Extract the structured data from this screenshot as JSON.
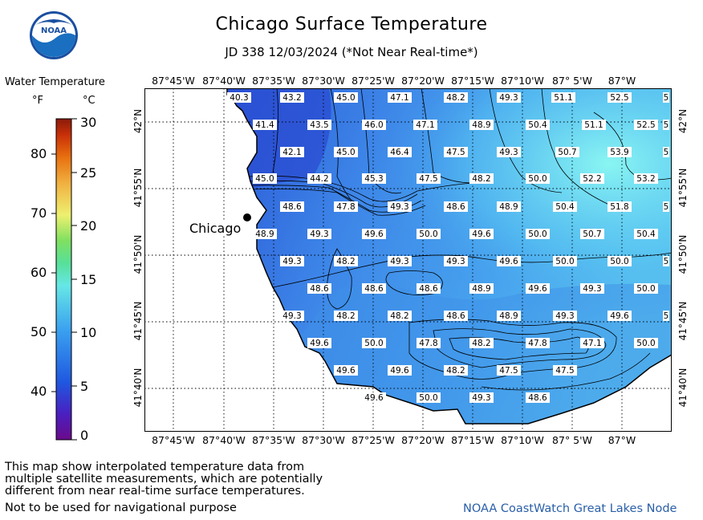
{
  "header": {
    "title": "Chicago Surface Temperature",
    "subtitle": "JD 338 12/03/2024 (*Not Near Real-time*)",
    "logo_text": "NOAA"
  },
  "legend": {
    "title": "Water Temperature",
    "unit_f": "°F",
    "unit_c": "°C",
    "f_ticks": [
      "80",
      "70",
      "60",
      "50",
      "40"
    ],
    "c_ticks": [
      "30",
      "25",
      "20",
      "15",
      "10",
      "5",
      "0"
    ]
  },
  "axes": {
    "lon_labels": [
      "87°45'W",
      "87°40'W",
      "87°35'W",
      "87°30'W",
      "87°25'W",
      "87°20'W",
      "87°15'W",
      "87°10'W",
      "87° 5'W",
      "87°W"
    ],
    "lat_labels": [
      "42°N",
      "41°55'N",
      "41°50'N",
      "41°45'N",
      "41°40'N"
    ]
  },
  "map": {
    "city_label": "Chicago",
    "colors": {
      "cold": "#2a56d6",
      "mid": "#3f93ea",
      "warm": "#7ff2f0",
      "land": "#ffffff"
    },
    "temperature_labels": [
      [
        "40.3",
        "43.2",
        "45.0",
        "47.1",
        "48.2",
        "49.3",
        "51.1",
        "52.5",
        "5"
      ],
      [
        "41.4",
        "43.5",
        "46.0",
        "47.1",
        "48.9",
        "50.4",
        "51.1",
        "52.5",
        "5"
      ],
      [
        "42.1",
        "45.0",
        "46.4",
        "47.5",
        "49.3",
        "50.7",
        "53.9",
        "5"
      ],
      [
        "45.0",
        "44.2",
        "45.3",
        "47.5",
        "48.2",
        "50.0",
        "52.2",
        "53.2"
      ],
      [
        "48.6",
        "47.8",
        "49.3",
        "48.6",
        "48.9",
        "50.4",
        "51.8",
        "5"
      ],
      [
        "48.9",
        "49.3",
        "49.6",
        "50.0",
        "49.6",
        "50.0",
        "50.7",
        "50.4"
      ],
      [
        "49.3",
        "48.2",
        "49.3",
        "49.3",
        "49.6",
        "50.0",
        "50.0",
        "5"
      ],
      [
        "48.6",
        "48.6",
        "48.6",
        "48.9",
        "49.6",
        "49.3",
        "50.0"
      ],
      [
        "49.3",
        "48.2",
        "48.2",
        "48.6",
        "48.9",
        "49.3",
        "49.6",
        "5"
      ],
      [
        "49.6",
        "50.0",
        "47.8",
        "48.2",
        "47.8",
        "47.1",
        "50.0"
      ],
      [
        "49.6",
        "49.6",
        "48.2",
        "47.5",
        "47.5"
      ],
      [
        "49.6",
        "50.0",
        "49.3",
        "48.6"
      ]
    ]
  },
  "footer": {
    "line1": "This map show interpolated temperature data from",
    "line2": "multiple satellite measurements, which are potentially",
    "line3": "different from near real-time surface temperatures.",
    "line4": "Not to be used for navigational purpose",
    "credit": "NOAA CoastWatch Great Lakes Node"
  }
}
